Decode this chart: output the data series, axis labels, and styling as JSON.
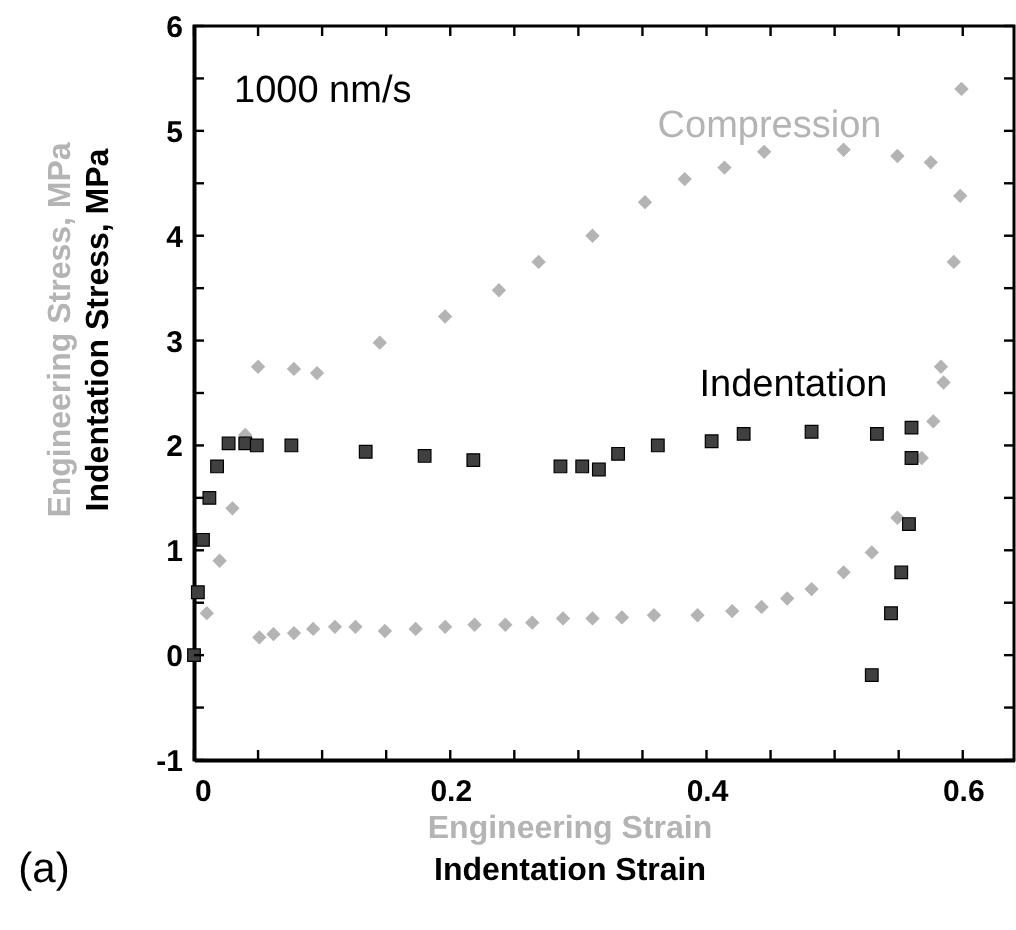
{
  "chart_data": {
    "type": "scatter",
    "xlabel": [
      "Engineering Strain",
      "Indentation Strain"
    ],
    "ylabel": [
      "Engineering Stress, MPa",
      "Indentation Stress, MPa"
    ],
    "annotations": [
      "1000 nm/s",
      "(a)"
    ],
    "xlim": [
      0,
      0.64
    ],
    "ylim": [
      -1,
      6
    ],
    "xticks": [
      0,
      {
        "value": 0.05,
        "label": null
      },
      {
        "value": 0.1,
        "label": null
      },
      {
        "value": 0.15,
        "label": null
      },
      0.2,
      {
        "value": 0.25,
        "label": null
      },
      {
        "value": 0.3,
        "label": null
      },
      {
        "value": 0.35,
        "label": null
      },
      0.4,
      {
        "value": 0.45,
        "label": null
      },
      {
        "value": 0.5,
        "label": null
      },
      {
        "value": 0.55,
        "label": null
      },
      0.6
    ],
    "yticks": [
      -1,
      {
        "value": -0.5,
        "label": null
      },
      0,
      {
        "value": 0.5,
        "label": null
      },
      1,
      {
        "value": 1.5,
        "label": null
      },
      2,
      {
        "value": 2.5,
        "label": null
      },
      3,
      {
        "value": 3.5,
        "label": null
      },
      4,
      {
        "value": 4.5,
        "label": null
      },
      5,
      {
        "value": 5.5,
        "label": null
      },
      6
    ],
    "series": [
      {
        "name": "Compression",
        "color": "#b4b4b4",
        "marker": "diamond",
        "x": [
          0.01,
          0.02,
          0.03,
          0.04,
          0.05,
          0.078,
          0.096,
          0.145,
          0.196,
          0.238,
          0.269,
          0.311,
          0.352,
          0.383,
          0.414,
          0.445,
          0.507,
          0.549,
          0.575,
          0.599,
          0.598,
          0.593,
          0.585,
          0.583,
          0.577,
          0.568,
          0.549,
          0.529,
          0.507,
          0.482,
          0.463,
          0.443,
          0.42,
          0.393,
          0.359,
          0.334,
          0.311,
          0.288,
          0.264,
          0.243,
          0.219,
          0.196,
          0.173,
          0.149,
          0.126,
          0.11,
          0.093,
          0.078,
          0.062,
          0.051
        ],
        "values": [
          0.4,
          0.9,
          1.4,
          2.1,
          2.75,
          2.73,
          2.69,
          2.98,
          3.23,
          3.48,
          3.75,
          4.0,
          4.32,
          4.54,
          4.65,
          4.8,
          4.82,
          4.76,
          4.7,
          5.4,
          4.38,
          3.75,
          2.6,
          2.75,
          2.23,
          1.88,
          1.31,
          0.98,
          0.79,
          0.63,
          0.54,
          0.46,
          0.42,
          0.38,
          0.38,
          0.36,
          0.35,
          0.35,
          0.31,
          0.29,
          0.29,
          0.27,
          0.25,
          0.23,
          0.27,
          0.27,
          0.25,
          0.21,
          0.2,
          0.17
        ]
      },
      {
        "name": "Indentation",
        "color": "#404040",
        "marker": "square",
        "x": [
          0,
          0.003,
          0.007,
          0.012,
          0.018,
          0.027,
          0.04,
          0.049,
          0.076,
          0.134,
          0.18,
          0.218,
          0.286,
          0.303,
          0.316,
          0.331,
          0.362,
          0.404,
          0.429,
          0.482,
          0.533,
          0.56,
          0.56,
          0.558,
          0.552,
          0.544,
          0.529
        ],
        "values": [
          0,
          0.6,
          1.1,
          1.5,
          1.8,
          2.02,
          2.02,
          2.0,
          2.0,
          1.94,
          1.9,
          1.86,
          1.8,
          1.8,
          1.77,
          1.92,
          2.0,
          2.04,
          2.11,
          2.13,
          2.11,
          2.17,
          1.88,
          1.25,
          0.79,
          0.4,
          -0.19
        ]
      }
    ]
  }
}
